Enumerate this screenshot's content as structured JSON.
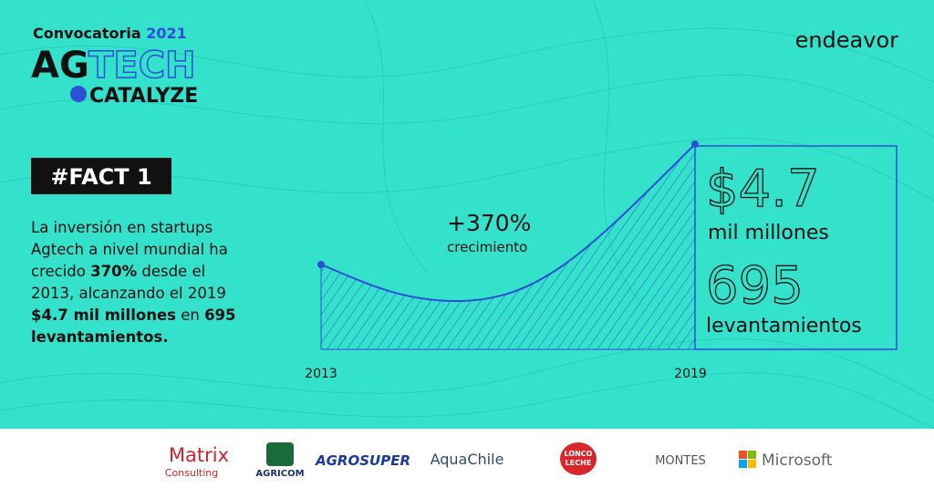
{
  "header": {
    "call": "Convocatoria",
    "year": "2021",
    "brand_a": "AG",
    "brand_b": "TECH",
    "brand_c": "CATALYZE",
    "partner": "endeavor"
  },
  "fact": {
    "badge": "#FACT 1",
    "lines": [
      [
        {
          "text": "La inversión en startups",
          "bold": false
        }
      ],
      [
        {
          "text": "Agtech a nivel mundial ha",
          "bold": false
        }
      ],
      [
        {
          "text": "crecido ",
          "bold": false
        },
        {
          "text": "370%",
          "bold": true
        },
        {
          "text": " desde el",
          "bold": false
        }
      ],
      [
        {
          "text": "2013, alcanzando el 2019",
          "bold": false
        }
      ],
      [
        {
          "text": "$4.7 mil millones",
          "bold": true
        },
        {
          "text": " en ",
          "bold": false
        },
        {
          "text": "695",
          "bold": true
        }
      ],
      [
        {
          "text": "levantamientos.",
          "bold": true
        }
      ]
    ]
  },
  "graphic": {
    "growth": "+370%",
    "growth_label": "crecimiento",
    "start_label": "2013",
    "end_label": "2019",
    "amount": "$4.7",
    "amount_label": "mil millones",
    "count": "695",
    "count_label": "levantamientos"
  },
  "sponsors": {
    "matrix": "Matrix",
    "matrix_sub": "Consulting",
    "agricom": "AGRICOM",
    "agrosuper": "AGROSUPER",
    "aquachile": "AquaChile",
    "lonco_a": "LONCO",
    "lonco_b": "LECHE",
    "montes": "MONTES",
    "microsoft": "Microsoft"
  }
}
